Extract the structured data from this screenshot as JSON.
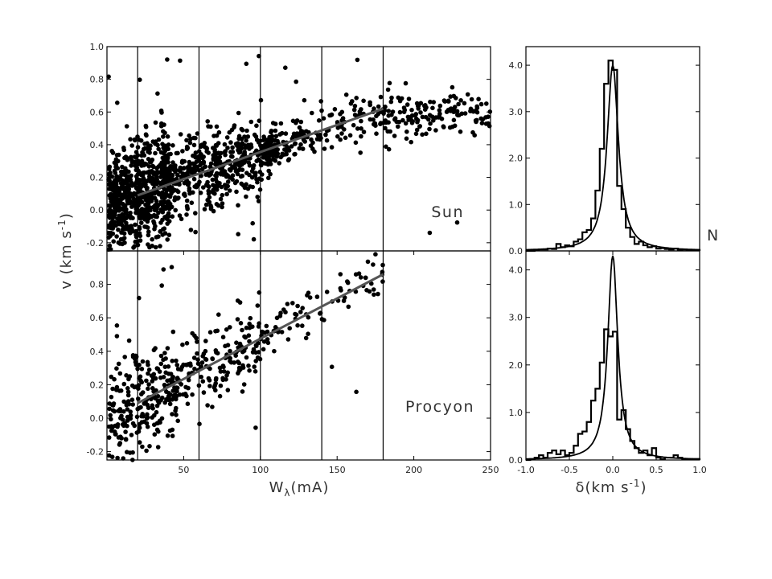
{
  "chart_data": [
    {
      "id": "sun_scatter",
      "type": "scatter",
      "panel_label": "Sun",
      "xlim": [
        0,
        250
      ],
      "ylim": [
        -0.25,
        1.0
      ],
      "xticks": [],
      "yticks": [
        -0.2,
        0.0,
        0.2,
        0.4,
        0.6,
        0.8,
        1.0
      ],
      "ytick_labels": [
        "-0.2",
        "0.0",
        "0.2",
        "0.4",
        "0.6",
        "0.8",
        "1.0"
      ],
      "vlines": [
        20,
        60,
        100,
        140,
        180
      ],
      "fit_line": {
        "x": [
          20,
          180
        ],
        "y": [
          0.09,
          0.62
        ]
      },
      "n_points": 1500
    },
    {
      "id": "procyon_scatter",
      "type": "scatter",
      "panel_label": "Procyon",
      "xlim": [
        0,
        250
      ],
      "ylim": [
        -0.25,
        1.0
      ],
      "xticks": [
        50,
        100,
        150,
        200,
        250
      ],
      "xtick_labels": [
        "50",
        "100",
        "150",
        "200",
        "250"
      ],
      "yticks": [
        -0.2,
        0.0,
        0.2,
        0.4,
        0.6,
        0.8
      ],
      "ytick_labels": [
        "-0.2",
        "0.0",
        "0.2",
        "0.4",
        "0.6",
        "0.8"
      ],
      "vlines": [
        20,
        60,
        100,
        140,
        180
      ],
      "fit_line": {
        "x": [
          20,
          180
        ],
        "y": [
          0.09,
          0.86
        ]
      },
      "n_points": 500
    },
    {
      "id": "sun_hist",
      "type": "histogram",
      "xlim": [
        -1.0,
        1.0
      ],
      "ylim": [
        0,
        4.4
      ],
      "yticks": [
        0,
        1,
        2,
        3,
        4
      ],
      "ytick_labels": [
        "0.0",
        "1.0",
        "2.0",
        "3.0",
        "4.0"
      ],
      "bin_edges": [
        -1.0,
        -0.95,
        -0.9,
        -0.85,
        -0.8,
        -0.75,
        -0.7,
        -0.65,
        -0.6,
        -0.55,
        -0.5,
        -0.45,
        -0.4,
        -0.35,
        -0.3,
        -0.25,
        -0.2,
        -0.15,
        -0.1,
        -0.05,
        0.0,
        0.05,
        0.1,
        0.15,
        0.2,
        0.25,
        0.3,
        0.35,
        0.4,
        0.45,
        0.5,
        0.55,
        0.6,
        0.65,
        0.7,
        0.75,
        0.8,
        0.85,
        0.9,
        0.95,
        1.0
      ],
      "counts": [
        0,
        0,
        0.02,
        0.03,
        0.03,
        0.05,
        0.04,
        0.15,
        0.08,
        0.12,
        0.1,
        0.2,
        0.25,
        0.4,
        0.45,
        0.7,
        1.3,
        2.2,
        3.6,
        4.1,
        3.9,
        1.4,
        0.9,
        0.5,
        0.3,
        0.15,
        0.2,
        0.12,
        0.08,
        0.1,
        0.05,
        0.06,
        0.04,
        0.03,
        0.05,
        0.02,
        0.03,
        0.02,
        0.02,
        0.02
      ],
      "curve": {
        "type": "lorentzian",
        "amplitude": 4.0,
        "center": 0.0,
        "gamma": 0.08
      }
    },
    {
      "id": "procyon_hist",
      "type": "histogram",
      "xlim": [
        -1.0,
        1.0
      ],
      "ylim": [
        0,
        4.4
      ],
      "xticks": [
        -1.0,
        -0.5,
        0.0,
        0.5,
        1.0
      ],
      "xtick_labels": [
        "-1.0",
        "-0.5",
        "0.0",
        "0.5",
        "1.0"
      ],
      "yticks": [
        0,
        1,
        2,
        3,
        4
      ],
      "ytick_labels": [
        "0.0",
        "1.0",
        "2.0",
        "3.0",
        "4.0"
      ],
      "bin_edges": [
        -1.0,
        -0.95,
        -0.9,
        -0.85,
        -0.8,
        -0.75,
        -0.7,
        -0.65,
        -0.6,
        -0.55,
        -0.5,
        -0.45,
        -0.4,
        -0.35,
        -0.3,
        -0.25,
        -0.2,
        -0.15,
        -0.1,
        -0.05,
        0.0,
        0.05,
        0.1,
        0.15,
        0.2,
        0.25,
        0.3,
        0.35,
        0.4,
        0.45,
        0.5,
        0.55,
        0.6,
        0.65,
        0.7,
        0.75,
        0.8,
        0.85,
        0.9,
        0.95,
        1.0
      ],
      "counts": [
        0,
        0.02,
        0.05,
        0.1,
        0.05,
        0.15,
        0.2,
        0.12,
        0.2,
        0.1,
        0.15,
        0.3,
        0.55,
        0.6,
        0.8,
        1.25,
        1.5,
        2.05,
        2.75,
        2.6,
        2.7,
        0.85,
        1.05,
        0.65,
        0.4,
        0.25,
        0.15,
        0.2,
        0.1,
        0.25,
        0.05,
        0.02,
        0.05,
        0.05,
        0.1,
        0.05,
        0.02,
        0.02,
        0.02,
        0.02
      ],
      "curve": {
        "type": "lorentzian",
        "amplitude": 4.3,
        "center": 0.0,
        "gamma": 0.07
      }
    }
  ],
  "labels": {
    "y_left": "v (km s",
    "y_left_sup": "-1",
    "y_left_close": ")",
    "x_left_main": "W",
    "x_left_sub": "λ",
    "x_left_rest": "(mA)",
    "x_right_main": "δ(km s",
    "x_right_sup": "-1",
    "x_right_close": ")",
    "right_n": "N",
    "sun": "Sun",
    "procyon": "Procyon"
  },
  "colors": {
    "points": "#000000",
    "fit_line": "#555555",
    "frame": "#000000"
  }
}
